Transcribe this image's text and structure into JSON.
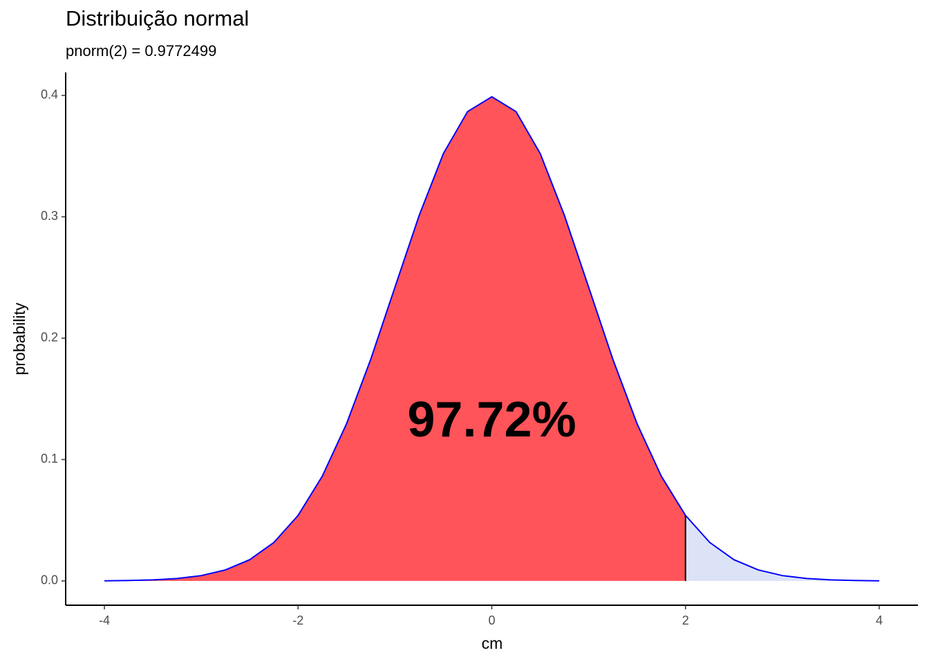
{
  "chart_data": {
    "type": "density-area",
    "title": "Distribuição normal",
    "subtitle": "pnorm(2) = 0.9772499",
    "x_label": "cm",
    "y_label": "probability",
    "x": [
      -4,
      -3.75,
      -3.5,
      -3.25,
      -3,
      -2.75,
      -2.5,
      -2.25,
      -2,
      -1.75,
      -1.5,
      -1.25,
      -1,
      -0.75,
      -0.5,
      -0.25,
      0,
      0.25,
      0.5,
      0.75,
      1,
      1.25,
      1.5,
      1.75,
      2,
      2.25,
      2.5,
      2.75,
      3,
      3.25,
      3.5,
      3.75,
      4
    ],
    "series": [
      {
        "color": "#0000ff",
        "values": [
          0.0001,
          0.0004,
          0.0009,
          0.002,
          0.0044,
          0.0091,
          0.0175,
          0.0317,
          0.054,
          0.0863,
          0.1295,
          0.1826,
          0.242,
          0.3011,
          0.3521,
          0.3867,
          0.3989,
          0.3867,
          0.3521,
          0.3011,
          0.242,
          0.1826,
          0.1295,
          0.0863,
          0.054,
          0.0317,
          0.0175,
          0.0091,
          0.0044,
          0.002,
          0.0009,
          0.0004,
          0.0001
        ]
      }
    ],
    "cutoff": 2,
    "cutoff_color": "#000000",
    "fill_below": "#ff5459",
    "fill_above": "#dce3f7",
    "annotation": {
      "text": "97.72%",
      "x": 0,
      "y": 0.13
    },
    "xlim": [
      -4.4,
      4.4
    ],
    "xticks": [
      -4,
      -2,
      0,
      2,
      4
    ],
    "ylim": [
      -0.02,
      0.419
    ],
    "yticks": [
      {
        "value": 0,
        "label": "0.0"
      },
      0.1,
      0.2,
      0.3,
      0.4
    ],
    "grid": false
  }
}
